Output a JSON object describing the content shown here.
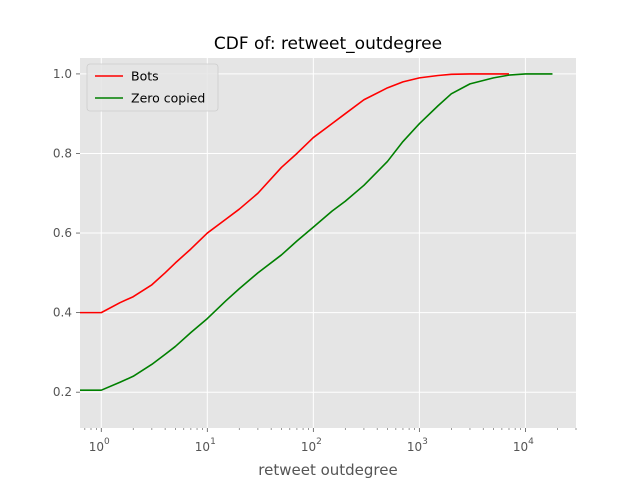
{
  "chart_data": {
    "type": "line",
    "title": "CDF of: retweet_outdegree",
    "xlabel": "retweet outdegree",
    "ylabel": "",
    "xscale": "log",
    "xlim": [
      0.63,
      30000
    ],
    "ylim": [
      0.11,
      1.04
    ],
    "grid": true,
    "legend_position": "top-left",
    "x_ticks": [
      {
        "value": 1,
        "base": "10",
        "exp": "0"
      },
      {
        "value": 10,
        "base": "10",
        "exp": "1"
      },
      {
        "value": 100,
        "base": "10",
        "exp": "2"
      },
      {
        "value": 1000,
        "base": "10",
        "exp": "3"
      },
      {
        "value": 10000,
        "base": "10",
        "exp": "4"
      }
    ],
    "y_ticks": [
      {
        "value": 0.2,
        "label": "0.2"
      },
      {
        "value": 0.4,
        "label": "0.4"
      },
      {
        "value": 0.6,
        "label": "0.6"
      },
      {
        "value": 0.8,
        "label": "0.8"
      },
      {
        "value": 1.0,
        "label": "1.0"
      }
    ],
    "series": [
      {
        "name": "Bots",
        "color": "#ff0000",
        "points": [
          [
            0.63,
            0.4
          ],
          [
            1,
            0.4
          ],
          [
            1.5,
            0.425
          ],
          [
            2,
            0.44
          ],
          [
            3,
            0.47
          ],
          [
            4,
            0.5
          ],
          [
            5,
            0.525
          ],
          [
            7,
            0.56
          ],
          [
            10,
            0.6
          ],
          [
            15,
            0.635
          ],
          [
            20,
            0.66
          ],
          [
            30,
            0.7
          ],
          [
            50,
            0.765
          ],
          [
            70,
            0.8
          ],
          [
            100,
            0.84
          ],
          [
            150,
            0.875
          ],
          [
            200,
            0.9
          ],
          [
            300,
            0.935
          ],
          [
            500,
            0.965
          ],
          [
            700,
            0.98
          ],
          [
            1000,
            0.99
          ],
          [
            1500,
            0.996
          ],
          [
            2000,
            0.999
          ],
          [
            3000,
            1.0
          ],
          [
            7000,
            1.0
          ]
        ]
      },
      {
        "name": "Zero copied",
        "color": "#008000",
        "points": [
          [
            0.63,
            0.205
          ],
          [
            1,
            0.205
          ],
          [
            1.5,
            0.225
          ],
          [
            2,
            0.24
          ],
          [
            3,
            0.27
          ],
          [
            4,
            0.295
          ],
          [
            5,
            0.315
          ],
          [
            7,
            0.35
          ],
          [
            10,
            0.385
          ],
          [
            15,
            0.43
          ],
          [
            20,
            0.46
          ],
          [
            30,
            0.5
          ],
          [
            50,
            0.545
          ],
          [
            70,
            0.58
          ],
          [
            100,
            0.615
          ],
          [
            150,
            0.655
          ],
          [
            200,
            0.68
          ],
          [
            300,
            0.72
          ],
          [
            500,
            0.78
          ],
          [
            700,
            0.83
          ],
          [
            1000,
            0.875
          ],
          [
            1500,
            0.92
          ],
          [
            2000,
            0.95
          ],
          [
            3000,
            0.975
          ],
          [
            5000,
            0.99
          ],
          [
            7000,
            0.997
          ],
          [
            10000,
            1.0
          ],
          [
            18000,
            1.0
          ]
        ]
      }
    ]
  }
}
